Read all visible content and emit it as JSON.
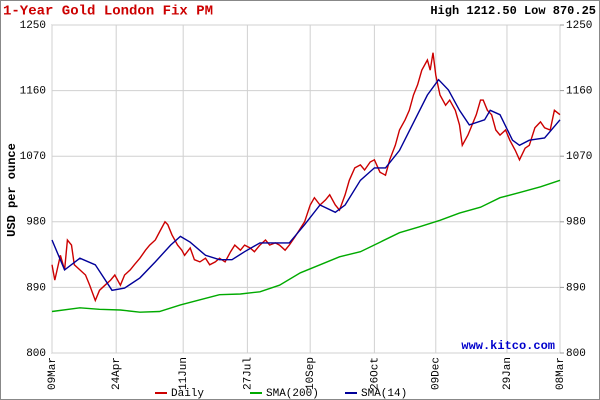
{
  "chart_data": {
    "type": "line",
    "title": "1-Year Gold London Fix PM",
    "high_low": "High 1212.50 Low 870.25",
    "y_label": "USD per ounce",
    "annotation": "www.kitco.com",
    "grid": true,
    "xlim": [
      0,
      364
    ],
    "xticks": [
      {
        "value": 0,
        "label": "09Mar"
      },
      {
        "value": 46,
        "label": "24Apr"
      },
      {
        "value": 94,
        "label": "11Jun"
      },
      {
        "value": 140,
        "label": "27Jul"
      },
      {
        "value": 185,
        "label": "10Sep"
      },
      {
        "value": 231,
        "label": "26Oct"
      },
      {
        "value": 275,
        "label": "09Dec"
      },
      {
        "value": 326,
        "label": "29Jan"
      },
      {
        "value": 364,
        "label": "08Mar"
      }
    ],
    "ylim": [
      800,
      1250
    ],
    "yticks": [
      800,
      890,
      980,
      1070,
      1160,
      1250
    ],
    "y2lim": [
      800,
      1250
    ],
    "y2ticks": [
      800,
      890,
      980,
      1070,
      1160,
      1250
    ],
    "series": [
      {
        "name": "Daily",
        "color": "#cc0000",
        "x": [
          0,
          2,
          6,
          9,
          11,
          14,
          16,
          20,
          24,
          27,
          31,
          34,
          38,
          42,
          45,
          49,
          52,
          56,
          59,
          63,
          67,
          70,
          74,
          77,
          81,
          83,
          86,
          90,
          93,
          95,
          99,
          102,
          106,
          110,
          113,
          117,
          120,
          124,
          128,
          131,
          135,
          138,
          142,
          145,
          149,
          153,
          156,
          160,
          163,
          167,
          170,
          174,
          178,
          181,
          185,
          188,
          192,
          196,
          199,
          203,
          206,
          210,
          213,
          217,
          221,
          224,
          228,
          231,
          235,
          239,
          242,
          246,
          249,
          253,
          256,
          259,
          262,
          265,
          269,
          271,
          273,
          275,
          278,
          282,
          285,
          289,
          292,
          294,
          298,
          301,
          304,
          307,
          309,
          312,
          315,
          318,
          321,
          325,
          328,
          332,
          335,
          339,
          342,
          346,
          350,
          353,
          357,
          360,
          364
        ],
        "values": [
          921,
          900,
          934,
          914,
          955,
          948,
          921,
          914,
          907,
          893,
          872,
          886,
          893,
          900,
          907,
          893,
          907,
          914,
          921,
          930,
          941,
          948,
          955,
          966,
          980,
          976,
          962,
          948,
          941,
          934,
          944,
          928,
          925,
          930,
          921,
          925,
          930,
          925,
          939,
          948,
          941,
          948,
          944,
          939,
          948,
          955,
          948,
          951,
          948,
          941,
          948,
          959,
          971,
          980,
          1003,
          1013,
          1003,
          1010,
          1017,
          1003,
          996,
          1017,
          1037,
          1054,
          1058,
          1051,
          1062,
          1065,
          1048,
          1044,
          1065,
          1085,
          1106,
          1120,
          1133,
          1154,
          1168,
          1188,
          1202,
          1188,
          1212,
          1181,
          1154,
          1140,
          1147,
          1133,
          1113,
          1085,
          1099,
          1113,
          1127,
          1147,
          1147,
          1133,
          1127,
          1106,
          1099,
          1106,
          1092,
          1078,
          1065,
          1081,
          1085,
          1109,
          1117,
          1109,
          1106,
          1133,
          1127
        ]
      },
      {
        "name": "SMA(200)",
        "color": "#00aa00",
        "x": [
          0,
          20,
          34,
          49,
          63,
          77,
          92,
          106,
          120,
          135,
          149,
          163,
          178,
          192,
          206,
          221,
          235,
          249,
          263,
          278,
          292,
          307,
          321,
          335,
          350,
          364
        ],
        "values": [
          857,
          862,
          860,
          859,
          856,
          857,
          866,
          873,
          880,
          881,
          884,
          893,
          910,
          921,
          932,
          939,
          952,
          965,
          973,
          982,
          992,
          1000,
          1013,
          1020,
          1028,
          1037
        ]
      },
      {
        "name": "SMA(14)",
        "color": "#000099",
        "x": [
          0,
          9,
          20,
          31,
          43,
          52,
          63,
          74,
          85,
          92,
          99,
          110,
          120,
          129,
          138,
          149,
          163,
          170,
          181,
          192,
          203,
          210,
          221,
          231,
          239,
          249,
          260,
          269,
          277,
          284,
          292,
          299,
          310,
          314,
          321,
          330,
          335,
          342,
          353,
          364
        ],
        "values": [
          955,
          914,
          930,
          921,
          886,
          889,
          903,
          925,
          948,
          960,
          952,
          934,
          928,
          928,
          939,
          951,
          951,
          951,
          976,
          1003,
          993,
          1003,
          1037,
          1054,
          1054,
          1078,
          1120,
          1154,
          1175,
          1161,
          1133,
          1113,
          1120,
          1133,
          1127,
          1092,
          1085,
          1092,
          1095,
          1120
        ]
      }
    ]
  }
}
